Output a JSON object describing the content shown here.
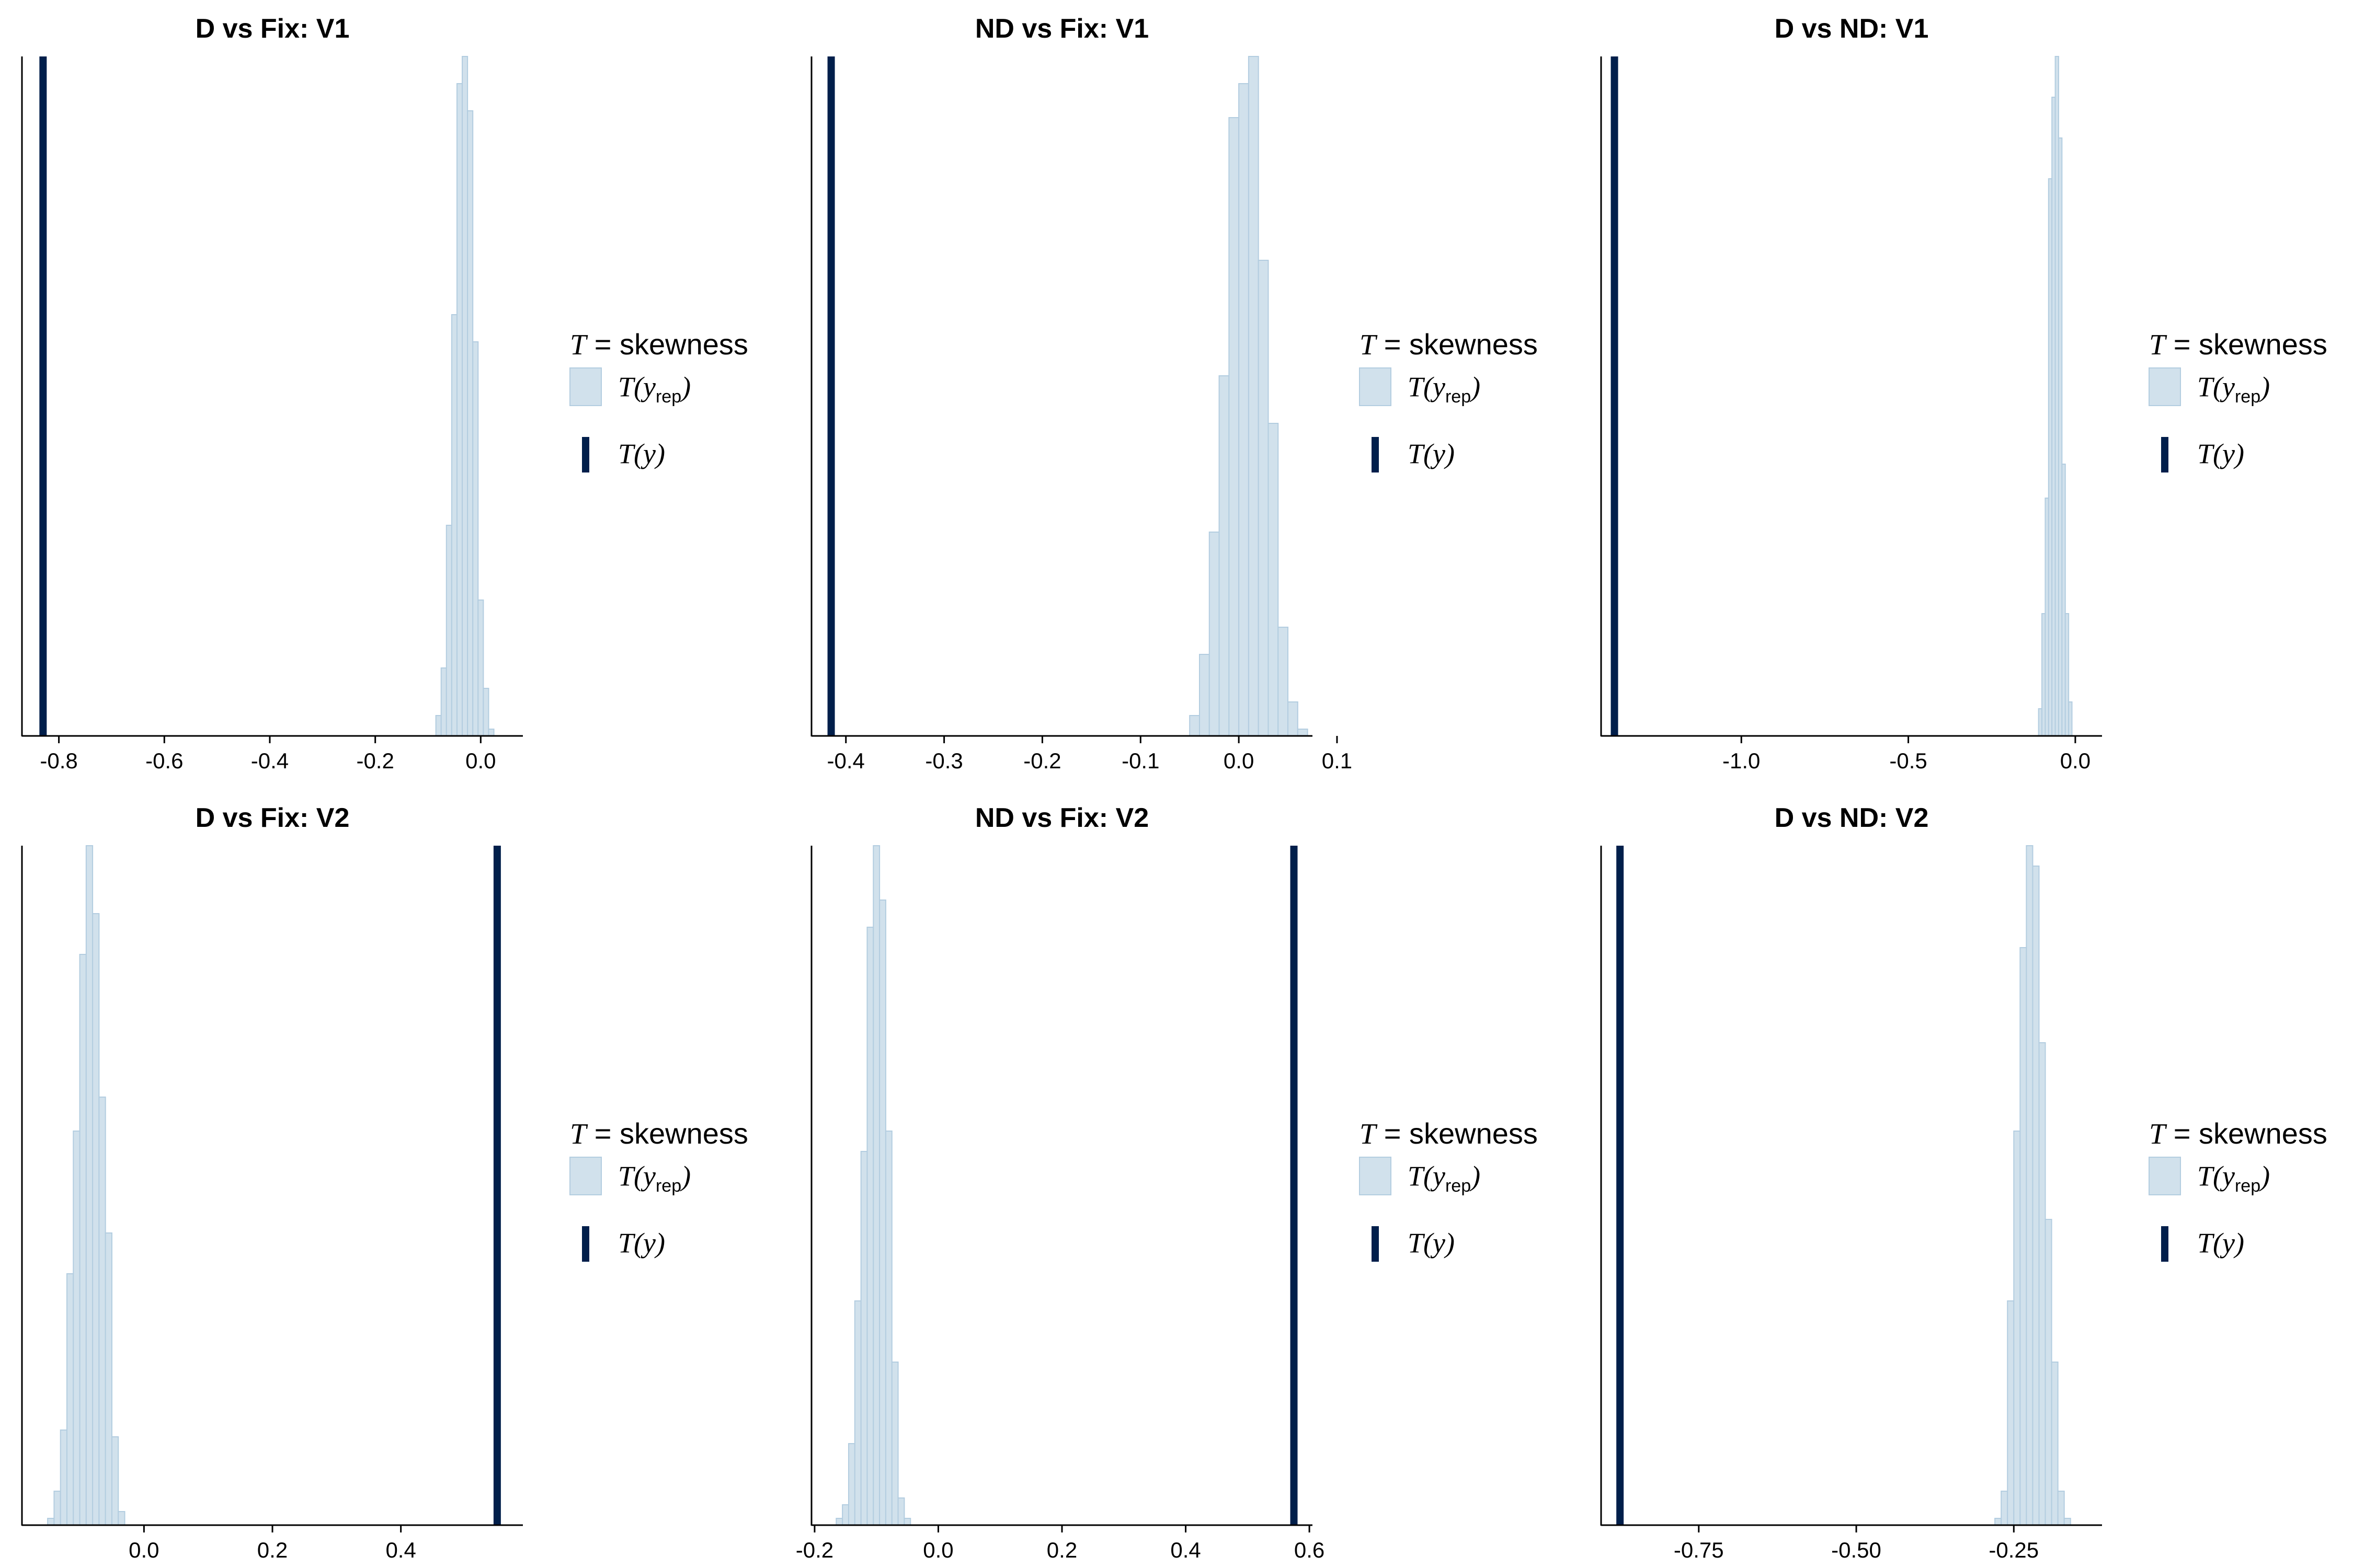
{
  "colors": {
    "bar_fill": "#d1e1ec",
    "bar_stroke": "#b3cde0",
    "observed_line": "#011f4b",
    "axis": "#000000"
  },
  "legend": {
    "title_var": "T",
    "title_eq": " = ",
    "title_stat": "skewness",
    "rep_label_prefix": "T(",
    "rep_label_var": "y",
    "rep_label_sub": "rep",
    "rep_label_suffix": ")",
    "obs_label": "T(y)"
  },
  "chart_data": [
    {
      "type": "histogram",
      "title": "D vs Fix: V1",
      "xlim": [
        -0.87,
        0.08
      ],
      "xticks": [
        -0.8,
        -0.6,
        -0.4,
        -0.2,
        0.0
      ],
      "xtick_labels": [
        "-0.8",
        "-0.6",
        "-0.4",
        "-0.2",
        "0.0"
      ],
      "bin_start": -0.085,
      "bin_width": 0.01,
      "counts": [
        0.03,
        0.1,
        0.31,
        0.62,
        0.96,
        1.0,
        0.92,
        0.58,
        0.2,
        0.07,
        0.01
      ],
      "observed": -0.83,
      "legend": "right",
      "grid": false
    },
    {
      "type": "histogram",
      "title": "ND vs Fix: V1",
      "xlim": [
        -0.435,
        0.075
      ],
      "xticks": [
        -0.4,
        -0.3,
        -0.2,
        -0.1,
        0.0,
        0.1
      ],
      "xtick_labels": [
        "-0.4",
        "-0.3",
        "-0.2",
        "-0.1",
        "0.0",
        "0.1"
      ],
      "bin_start": -0.05,
      "bin_width": 0.01,
      "counts": [
        0.03,
        0.12,
        0.3,
        0.53,
        0.91,
        0.96,
        1.0,
        0.7,
        0.46,
        0.16,
        0.05,
        0.01
      ],
      "observed": -0.415,
      "legend": "right",
      "grid": false
    },
    {
      "type": "histogram",
      "title": "D vs ND: V1",
      "xlim": [
        -1.42,
        0.08
      ],
      "xticks": [
        -1.0,
        -0.5,
        0.0
      ],
      "xtick_labels": [
        "-1.0",
        "-0.5",
        "0.0"
      ],
      "bin_start": -0.11,
      "bin_width": 0.01,
      "counts": [
        0.04,
        0.18,
        0.35,
        0.82,
        0.94,
        1.0,
        0.88,
        0.4,
        0.18,
        0.05
      ],
      "observed": -1.38,
      "legend": "right",
      "grid": false
    },
    {
      "type": "histogram",
      "title": "D vs Fix: V2",
      "xlim": [
        -0.19,
        0.59
      ],
      "xticks": [
        0.0,
        0.2,
        0.4
      ],
      "xtick_labels": [
        "0.0",
        "0.2",
        "0.4"
      ],
      "bin_start": -0.15,
      "bin_width": 0.01,
      "counts": [
        0.01,
        0.05,
        0.14,
        0.37,
        0.58,
        0.84,
        1.0,
        0.9,
        0.63,
        0.43,
        0.13,
        0.02
      ],
      "observed": 0.55,
      "legend": "right",
      "grid": false
    },
    {
      "type": "histogram",
      "title": "ND vs Fix: V2",
      "xlim": [
        -0.205,
        0.605
      ],
      "xticks": [
        -0.2,
        0.0,
        0.2,
        0.4,
        0.6
      ],
      "xtick_labels": [
        "-0.2",
        "0.0",
        "0.2",
        "0.4",
        "0.6"
      ],
      "bin_start": -0.165,
      "bin_width": 0.01,
      "counts": [
        0.01,
        0.03,
        0.12,
        0.33,
        0.55,
        0.88,
        1.0,
        0.92,
        0.58,
        0.24,
        0.04,
        0.01
      ],
      "observed": 0.575,
      "legend": "right",
      "grid": false
    },
    {
      "type": "histogram",
      "title": "D vs ND: V2",
      "xlim": [
        -0.905,
        -0.11
      ],
      "xticks": [
        -0.75,
        -0.5,
        -0.25
      ],
      "xtick_labels": [
        "-0.75",
        "-0.50",
        "-0.25"
      ],
      "bin_start": -0.28,
      "bin_width": 0.01,
      "counts": [
        0.01,
        0.05,
        0.33,
        0.58,
        0.85,
        1.0,
        0.97,
        0.71,
        0.45,
        0.24,
        0.05,
        0.01
      ],
      "observed": -0.875,
      "legend": "right",
      "grid": false
    }
  ]
}
